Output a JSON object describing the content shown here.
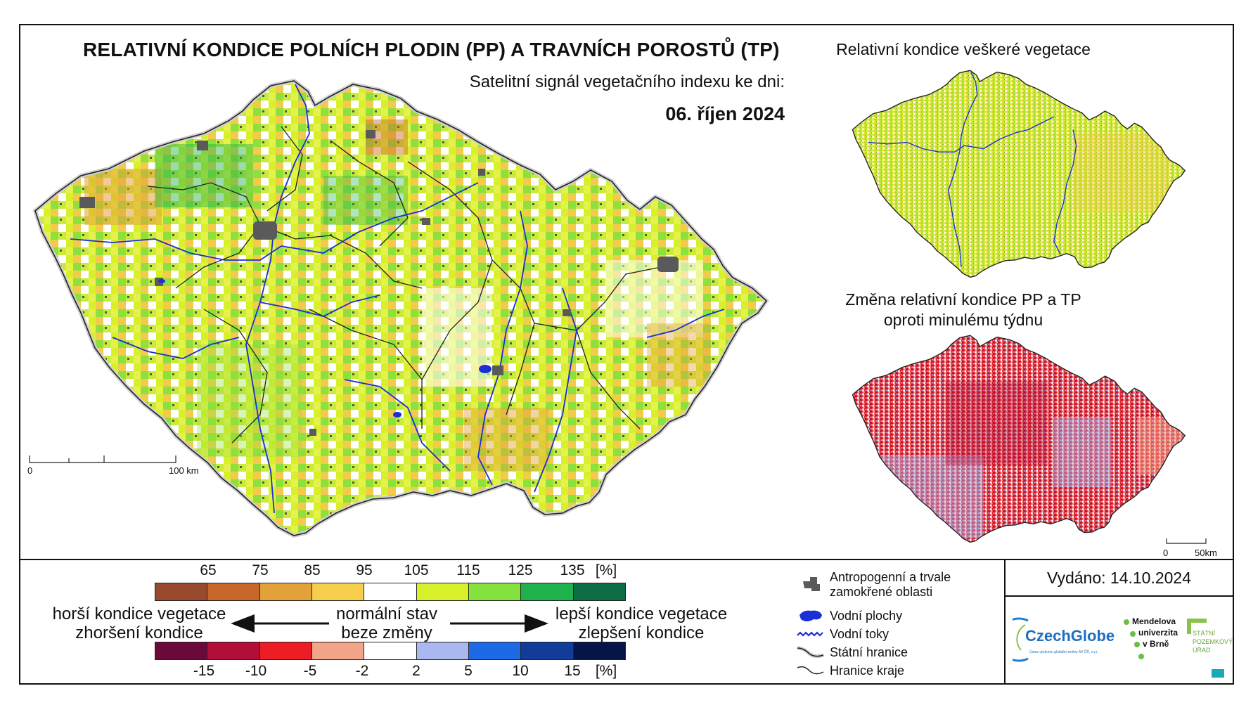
{
  "header": {
    "title": "RELATIVNÍ KONDICE POLNÍCH PLODIN (PP) A TRAVNÍCH POROSTŮ (TP)",
    "subtitle": "Satelitní signál vegetačního indexu ke dni:",
    "date": "06. říjen 2024"
  },
  "main_map": {
    "scale_start": "0",
    "scale_end": "100 km"
  },
  "inset_vegetation": {
    "title": "Relativní kondice veškeré vegetace"
  },
  "inset_change": {
    "title_line1": "Změna relativní kondice PP a TP",
    "title_line2": "oproti minulému týdnu",
    "scale_start": "0",
    "scale_end": "50km"
  },
  "legend_condition": {
    "colors": [
      "#9a4a2c",
      "#c9672a",
      "#e3a13a",
      "#f7ce4b",
      "#ffffff",
      "#d8f02a",
      "#83e23d",
      "#1fb14b",
      "#0d6e45"
    ],
    "ticks": [
      "65",
      "75",
      "85",
      "95",
      "105",
      "115",
      "125",
      "135"
    ],
    "unit": "[%]"
  },
  "legend_change": {
    "colors": [
      "#6b0a3a",
      "#b30d3a",
      "#ec1d24",
      "#f3a58c",
      "#ffffff",
      "#a9b9ef",
      "#1e69e6",
      "#123b9a",
      "#061548"
    ],
    "ticks": [
      "-15",
      "-10",
      "-5",
      "-2",
      "2",
      "5",
      "10",
      "15"
    ],
    "unit": "[%]"
  },
  "descriptions": {
    "worse_line1": "horší kondice vegetace",
    "worse_line2": "zhoršení kondice",
    "normal_line1": "normální stav",
    "normal_line2": "beze změny",
    "better_line1": "lepší kondice vegetace",
    "better_line2": "zlepšení kondice"
  },
  "symbol_legend": {
    "urban_line1": "Antropogenní a trvale",
    "urban_line2": "zamokřené oblasti",
    "water_bodies": "Vodní plochy",
    "rivers": "Vodní toky",
    "state_border": "Státní hranice",
    "region_border": "Hranice kraje"
  },
  "issued": "Vydáno: 14.10.2024",
  "logos": {
    "czechglobe": "CzechGlobe",
    "czechglobe_tagline": "Ústav výzkumu globální změny AV ČR, v.v.i.",
    "mendelu_line1": "Mendelova",
    "mendelu_line2": "univerzita",
    "mendelu_line3": "v Brně",
    "spu_line1": "STÁTNÍ",
    "spu_line2": "POZEMKOVÝ",
    "spu_line3": "ÚŘAD"
  }
}
